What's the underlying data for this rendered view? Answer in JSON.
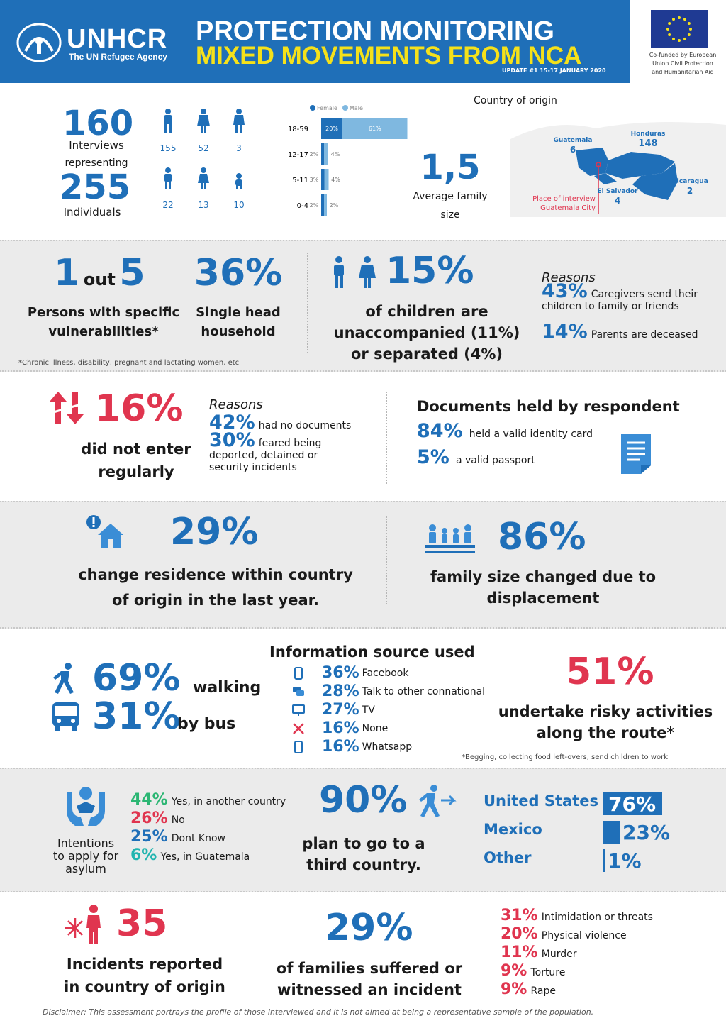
{
  "header": {
    "org_name": "UNHCR",
    "org_tagline": "The UN Refugee Agency",
    "title_line1": "PROTECTION MONITORING",
    "title_line2": "MIXED MOVEMENTS FROM NCA",
    "update": "UPDATE #1 15-17 JANUARY 2020",
    "eu_funding": [
      "Co-funded by European",
      "Union Civil Protection",
      "and Humanitarian Aid"
    ]
  },
  "overview": {
    "interviews_value": "160",
    "interviews_label": "Interviews",
    "representing_label": "representing",
    "individuals_value": "255",
    "individuals_label": "Individuals",
    "people_counts": [
      {
        "icon": "man-icon",
        "value": "155"
      },
      {
        "icon": "woman-icon",
        "value": "52"
      },
      {
        "icon": "person-icon",
        "value": "3"
      },
      {
        "icon": "boy-icon",
        "value": "22"
      },
      {
        "icon": "girl-icon",
        "value": "13"
      },
      {
        "icon": "baby-icon",
        "value": "10"
      }
    ],
    "family_size_value": "1,5",
    "family_size_label1": "Average family",
    "family_size_label2": "size"
  },
  "chart_data": {
    "type": "bar",
    "orientation": "horizontal",
    "stacked": true,
    "categories": [
      "18-59",
      "12-17",
      "5-11",
      "0-4"
    ],
    "series": [
      {
        "name": "Female",
        "values": [
          20,
          2,
          3,
          2
        ],
        "labels": [
          "20%",
          "2%",
          "3%",
          "2%"
        ],
        "color": "#1f6fb8"
      },
      {
        "name": "Male",
        "values": [
          61,
          4,
          4,
          2
        ],
        "labels": [
          "61%",
          "4%",
          "4%",
          "2%"
        ],
        "color": "#7fb8e0"
      }
    ],
    "legend": "top",
    "grid": false
  },
  "map": {
    "title": "Country of origin",
    "countries": [
      {
        "name": "Guatemala",
        "value": "6"
      },
      {
        "name": "Honduras",
        "value": "148"
      },
      {
        "name": "El Salvador",
        "value": "4"
      },
      {
        "name": "Nicaragua",
        "value": "2"
      }
    ],
    "interview_place_line1": "Place of interview",
    "interview_place_line2": "Guatemala City"
  },
  "vulnerability": {
    "ratio_a": "1",
    "ratio_out": "out",
    "ratio_b": "5",
    "ratio_label1": "Persons with specific",
    "ratio_label2": "vulnerabilities*",
    "single_head_value": "36%",
    "single_head_label1": "Single head",
    "single_head_label2": "household",
    "footnote": "*Chronic illness, disability, pregnant and lactating women, etc",
    "children_value": "15%",
    "children_label1": "of children are",
    "children_label2": "unaccompanied (11%)",
    "children_label3": "or separated (4%)",
    "reasons_title": "Reasons",
    "reasons": [
      {
        "pct": "43%",
        "text": "Caregivers send their",
        "text2": "children to family or friends"
      },
      {
        "pct": "14%",
        "text": "Parents are deceased"
      }
    ]
  },
  "entry": {
    "value": "16%",
    "label1": "did not enter",
    "label2": "regularly",
    "reasons_title": "Reasons",
    "reasons": [
      {
        "pct": "42%",
        "text": "had no documents"
      },
      {
        "pct": "30%",
        "text": "feared being",
        "text2": "deported, detained or",
        "text3": "security incidents"
      }
    ],
    "docs_title": "Documents held by respondent",
    "docs": [
      {
        "pct": "84%",
        "text": "held a valid identity card"
      },
      {
        "pct": "5%",
        "text": "a valid passport"
      }
    ]
  },
  "residence": {
    "value": "29%",
    "label1": "change residence within country",
    "label2": "of origin in the last year.",
    "family_value": "86%",
    "family_label1": "family size changed due to",
    "family_label2": "displacement"
  },
  "travel": {
    "walking_pct": "69%",
    "walking_label": "walking",
    "bus_pct": "31%",
    "bus_label": "by bus",
    "info_title": "Information source used",
    "info_sources": [
      {
        "pct": "36%",
        "text": "Facebook",
        "icon": "phone-icon"
      },
      {
        "pct": "28%",
        "text": "Talk to other connational",
        "icon": "chat-icon"
      },
      {
        "pct": "27%",
        "text": "TV",
        "icon": "tv-icon"
      },
      {
        "pct": "16%",
        "text": "None",
        "icon": "cross-icon"
      },
      {
        "pct": "16%",
        "text": "Whatsapp",
        "icon": "phone-icon"
      }
    ],
    "risky_value": "51%",
    "risky_label1": "undertake risky activities",
    "risky_label2": "along the route*",
    "risky_footnote": "*Begging, collecting food left-overs, send children to work"
  },
  "intentions": {
    "asylum_label1": "Intentions",
    "asylum_label2": "to apply for",
    "asylum_label3": "asylum",
    "asylum_options": [
      {
        "pct": "44%",
        "text": "Yes, in another country",
        "color": "#2bb673"
      },
      {
        "pct": "26%",
        "text": "No",
        "color": "#e0354f"
      },
      {
        "pct": "25%",
        "text": "Dont Know",
        "color": "#1f6fb8"
      },
      {
        "pct": "6%",
        "text": "Yes, in Guatemala",
        "color": "#22b5b0"
      }
    ],
    "third_value": "90%",
    "third_label1": "plan to go to a",
    "third_label2": "third country.",
    "destinations": [
      {
        "name": "United States",
        "pct": "76%",
        "value": 76
      },
      {
        "name": "Mexico",
        "pct": "23%",
        "value": 23
      },
      {
        "name": "Other",
        "pct": "1%",
        "value": 1
      }
    ]
  },
  "incidents": {
    "value": "35",
    "label1": "Incidents reported",
    "label2": "in country of origin",
    "families_value": "29%",
    "families_label1": "of families suffered or",
    "families_label2": "witnessed an incident",
    "types": [
      {
        "pct": "31%",
        "text": "Intimidation or threats"
      },
      {
        "pct": "20%",
        "text": "Physical violence"
      },
      {
        "pct": "11%",
        "text": "Murder"
      },
      {
        "pct": "9%",
        "text": "Torture"
      },
      {
        "pct": "9%",
        "text": "Rape"
      }
    ]
  },
  "disclaimer": "Disclaimer: This assessment portrays the profile of those interviewed and it is not aimed at being a representative sample of the population.",
  "colors": {
    "primary": "#1f6fb8",
    "accent_yellow": "#f5e11a",
    "alert_red": "#e0354f",
    "band_gray": "#ebebeb"
  }
}
